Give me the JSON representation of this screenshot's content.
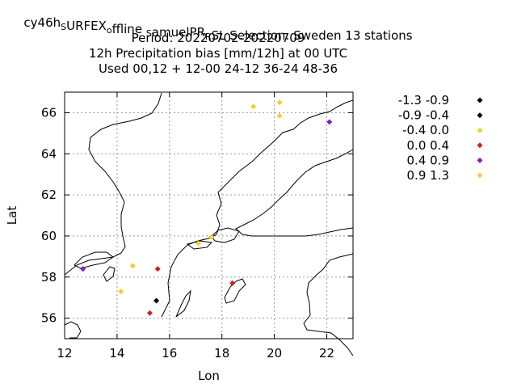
{
  "title_lines": [
    {
      "segments": [
        {
          "text": "cy46h",
          "shift": "none"
        },
        {
          "text": "S",
          "shift": "sub"
        },
        {
          "text": "URFEX",
          "shift": "none"
        },
        {
          "text": "o",
          "shift": "sub"
        },
        {
          "text": "ffline ",
          "shift": "none"
        },
        {
          "text": "S",
          "shift": "sub"
        },
        {
          "text": "amuelPR",
          "shift": "none"
        },
        {
          "text": "R",
          "shift": "sub"
        },
        {
          "text": "SL    Selection: Sweden      13 stations",
          "shift": "none"
        }
      ]
    },
    {
      "segments": [
        {
          "text": "Period: 20220702-20220709",
          "shift": "none"
        }
      ]
    },
    {
      "segments": [
        {
          "text": "12h Precipitation bias [mm/12h] at  00 UTC",
          "shift": "none"
        }
      ]
    },
    {
      "segments": [
        {
          "text": "Used  00,12  + 12-00 24-12 36-24 48-36",
          "shift": "none"
        }
      ]
    }
  ],
  "chart_data": {
    "type": "scatter",
    "xlabel": "Lon",
    "ylabel": "Lat",
    "xlim": [
      12,
      23
    ],
    "ylim": [
      55,
      67
    ],
    "xticks": [
      "12",
      "14",
      "16",
      "18",
      "20",
      "22"
    ],
    "yticks": [
      "56",
      "58",
      "60",
      "62",
      "64",
      "66"
    ],
    "grid": true,
    "legend_placement": "right",
    "legend": [
      {
        "label": "-1.3 -0.9",
        "color": "#000000"
      },
      {
        "label": "-0.9 -0.4",
        "color": "#000000"
      },
      {
        "label": "-0.4 0.0",
        "color": "#f0d030"
      },
      {
        "label": "0.0 0.4",
        "color": "#cc2020"
      },
      {
        "label": "0.4 0.9",
        "color": "#8020c0"
      },
      {
        "label": "0.9 1.3",
        "color": "#f0d030"
      }
    ],
    "points": [
      {
        "x": 15.5,
        "y": 56.85,
        "cls": 1
      },
      {
        "x": 15.25,
        "y": 56.25,
        "cls": 3
      },
      {
        "x": 15.55,
        "y": 58.4,
        "cls": 3
      },
      {
        "x": 18.4,
        "y": 57.7,
        "cls": 3
      },
      {
        "x": 12.7,
        "y": 58.4,
        "cls": 4
      },
      {
        "x": 22.1,
        "y": 65.55,
        "cls": 4
      },
      {
        "x": 14.6,
        "y": 58.55,
        "cls": 5
      },
      {
        "x": 14.15,
        "y": 57.3,
        "cls": 5
      },
      {
        "x": 17.1,
        "y": 59.65,
        "cls": 5
      },
      {
        "x": 17.6,
        "y": 59.95,
        "cls": 5
      },
      {
        "x": 19.2,
        "y": 66.3,
        "cls": 5
      },
      {
        "x": 20.2,
        "y": 66.5,
        "cls": 5
      },
      {
        "x": 20.2,
        "y": 65.85,
        "cls": 5
      }
    ]
  }
}
